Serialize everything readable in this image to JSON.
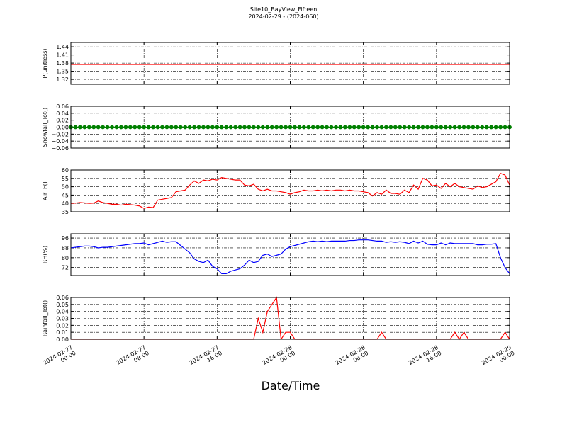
{
  "chart_data": {
    "type": "line",
    "title": [
      "Site10_BayView_Fifteen",
      "2024-02-29 - (2024-060)"
    ],
    "x_label": "Date/Time",
    "xlim": [
      "2024-02-27 00:00",
      "2024-02-29 00:00"
    ],
    "xticks": [
      {
        "value": "2024-02-27 00:00",
        "label": "2024-02-27\n00:00"
      },
      {
        "value": "2024-02-27 08:00",
        "label": "2024-02-27\n08:00"
      },
      {
        "value": "2024-02-27 16:00",
        "label": "2024-02-27\n16:00"
      },
      {
        "value": "2024-02-28 00:00",
        "label": "2024-02-28\n00:00"
      },
      {
        "value": "2024-02-28 08:00",
        "label": "2024-02-28\n08:00"
      },
      {
        "value": "2024-02-28 16:00",
        "label": "2024-02-28\n16:00"
      },
      {
        "value": "2024-02-29 00:00",
        "label": "2024-02-29\n00:00"
      }
    ],
    "grid": true,
    "x": [
      "2024-02-27 00:00",
      "2024-02-27 00:30",
      "2024-02-27 01:00",
      "2024-02-27 01:30",
      "2024-02-27 02:00",
      "2024-02-27 02:30",
      "2024-02-27 03:00",
      "2024-02-27 03:30",
      "2024-02-27 04:00",
      "2024-02-27 04:30",
      "2024-02-27 05:00",
      "2024-02-27 05:30",
      "2024-02-27 06:00",
      "2024-02-27 06:30",
      "2024-02-27 07:00",
      "2024-02-27 07:30",
      "2024-02-27 08:00",
      "2024-02-27 08:30",
      "2024-02-27 09:00",
      "2024-02-27 09:30",
      "2024-02-27 10:00",
      "2024-02-27 10:30",
      "2024-02-27 11:00",
      "2024-02-27 11:30",
      "2024-02-27 12:00",
      "2024-02-27 12:30",
      "2024-02-27 13:00",
      "2024-02-27 13:30",
      "2024-02-27 14:00",
      "2024-02-27 14:30",
      "2024-02-27 15:00",
      "2024-02-27 15:30",
      "2024-02-27 16:00",
      "2024-02-27 16:30",
      "2024-02-27 17:00",
      "2024-02-27 17:30",
      "2024-02-27 18:00",
      "2024-02-27 18:30",
      "2024-02-27 19:00",
      "2024-02-27 19:30",
      "2024-02-27 20:00",
      "2024-02-27 20:30",
      "2024-02-27 21:00",
      "2024-02-27 21:30",
      "2024-02-27 22:00",
      "2024-02-27 22:30",
      "2024-02-27 23:00",
      "2024-02-27 23:30",
      "2024-02-28 00:00",
      "2024-02-28 00:30",
      "2024-02-28 01:00",
      "2024-02-28 01:30",
      "2024-02-28 02:00",
      "2024-02-28 02:30",
      "2024-02-28 03:00",
      "2024-02-28 03:30",
      "2024-02-28 04:00",
      "2024-02-28 04:30",
      "2024-02-28 05:00",
      "2024-02-28 05:30",
      "2024-02-28 06:00",
      "2024-02-28 06:30",
      "2024-02-28 07:00",
      "2024-02-28 07:30",
      "2024-02-28 08:00",
      "2024-02-28 08:30",
      "2024-02-28 09:00",
      "2024-02-28 09:30",
      "2024-02-28 10:00",
      "2024-02-28 10:30",
      "2024-02-28 11:00",
      "2024-02-28 11:30",
      "2024-02-28 12:00",
      "2024-02-28 12:30",
      "2024-02-28 13:00",
      "2024-02-28 13:30",
      "2024-02-28 14:00",
      "2024-02-28 14:30",
      "2024-02-28 15:00",
      "2024-02-28 15:30",
      "2024-02-28 16:00",
      "2024-02-28 16:30",
      "2024-02-28 17:00",
      "2024-02-28 17:30",
      "2024-02-28 18:00",
      "2024-02-28 18:30",
      "2024-02-28 19:00",
      "2024-02-28 19:30",
      "2024-02-28 20:00",
      "2024-02-28 20:30",
      "2024-02-28 21:00",
      "2024-02-28 21:30",
      "2024-02-28 22:00",
      "2024-02-28 22:30",
      "2024-02-28 23:00",
      "2024-02-28 23:30",
      "2024-02-29 00:00"
    ],
    "panels": [
      {
        "y_label": "P(unitless)",
        "color": "#ff0000",
        "ylim": [
          1.302,
          1.456
        ],
        "yticks": [
          1.32,
          1.35,
          1.38,
          1.41,
          1.44
        ],
        "values": [
          1.375,
          1.375,
          1.375,
          1.375,
          1.375,
          1.375,
          1.375,
          1.375,
          1.375,
          1.375,
          1.375,
          1.375,
          1.375,
          1.375,
          1.375,
          1.375,
          1.375,
          1.375,
          1.375,
          1.375,
          1.375,
          1.375,
          1.375,
          1.375,
          1.375,
          1.375,
          1.375,
          1.375,
          1.375,
          1.375,
          1.375,
          1.375,
          1.375,
          1.375,
          1.375,
          1.375,
          1.375,
          1.375,
          1.375,
          1.375,
          1.375,
          1.375,
          1.375,
          1.375,
          1.375,
          1.375,
          1.375,
          1.375,
          1.375,
          1.375,
          1.375,
          1.375,
          1.375,
          1.375,
          1.375,
          1.375,
          1.375,
          1.375,
          1.375,
          1.375,
          1.375,
          1.375,
          1.375,
          1.375,
          1.375,
          1.375,
          1.375,
          1.375,
          1.375,
          1.375,
          1.375,
          1.375,
          1.375,
          1.375,
          1.375,
          1.375,
          1.375,
          1.375,
          1.375,
          1.375,
          1.375,
          1.375,
          1.375,
          1.375,
          1.375,
          1.375,
          1.375,
          1.375,
          1.375,
          1.375,
          1.375,
          1.375,
          1.375,
          1.375,
          1.375,
          1.375,
          1.375
        ]
      },
      {
        "y_label": "Snowfall_Tot()",
        "color": "#008000",
        "marker": "o",
        "ylim": [
          -0.06,
          0.06
        ],
        "yticks": [
          {
            "value": -0.06,
            "label": "−0.06"
          },
          {
            "value": -0.04,
            "label": "−0.04"
          },
          {
            "value": -0.02,
            "label": "−0.02"
          },
          {
            "value": 0,
            "label": "0.00"
          },
          0.02,
          0.04,
          0.06
        ],
        "values": [
          0,
          0,
          0,
          0,
          0,
          0,
          0,
          0,
          0,
          0,
          0,
          0,
          0,
          0,
          0,
          0,
          0,
          0,
          0,
          0,
          0,
          0,
          0,
          0,
          0,
          0,
          0,
          0,
          0,
          0,
          0,
          0,
          0,
          0,
          0,
          0,
          0,
          0,
          0,
          0,
          0,
          0,
          0,
          0,
          0,
          0,
          0,
          0,
          0,
          0,
          0,
          0,
          0,
          0,
          0,
          0,
          0,
          0,
          0,
          0,
          0,
          0,
          0,
          0,
          0,
          0,
          0,
          0,
          0,
          0,
          0,
          0,
          0,
          0,
          0,
          0,
          0,
          0,
          0,
          0,
          0,
          0,
          0,
          0,
          0,
          0,
          0,
          0,
          0,
          0,
          0,
          0,
          0,
          0,
          0,
          0,
          0
        ]
      },
      {
        "y_label": "AirTF()",
        "color": "#ff0000",
        "ylim": [
          35,
          60
        ],
        "yticks": [
          35,
          40,
          45,
          50,
          55,
          60
        ],
        "values": [
          40,
          40.2,
          40.5,
          40.3,
          40,
          40.2,
          41.5,
          40.5,
          40,
          39.5,
          39.5,
          39,
          39.5,
          39.3,
          39,
          38.5,
          37,
          37.8,
          37.5,
          42,
          42.5,
          43,
          43.5,
          47,
          47.5,
          48,
          51,
          53.5,
          52,
          54,
          53.5,
          54.5,
          54,
          55.5,
          55,
          54.5,
          54,
          54,
          51,
          50.5,
          51.5,
          48.5,
          47.5,
          48.5,
          47.5,
          47.5,
          47,
          46.5,
          45.5,
          46.5,
          47,
          48,
          47.5,
          47.5,
          48,
          47.5,
          48,
          47.5,
          48,
          48,
          47.5,
          48,
          47.5,
          47.5,
          47,
          46.5,
          44.5,
          46.5,
          45.5,
          48,
          46,
          46,
          45.5,
          48,
          46.5,
          51,
          48.5,
          55,
          54,
          50.5,
          51,
          49,
          52,
          50,
          52,
          50,
          49.5,
          49,
          48.5,
          50.5,
          49.5,
          50,
          51.5,
          53,
          58,
          57,
          51
        ]
      },
      {
        "y_label": "RH(%)",
        "color": "#0000ff",
        "ylim": [
          65.5,
          99.5
        ],
        "yticks": [
          72,
          80,
          88,
          96
        ],
        "values": [
          88,
          88.5,
          89,
          89.5,
          89.5,
          89,
          88,
          88.5,
          88.5,
          89,
          89.5,
          90,
          90.5,
          91,
          91.5,
          91.5,
          92,
          90.5,
          91.5,
          92.5,
          93.5,
          92.5,
          93,
          93,
          90,
          87,
          84,
          79,
          77,
          76,
          78,
          73,
          71,
          67,
          67,
          69,
          70,
          71,
          74,
          78,
          76,
          77,
          82,
          83,
          81,
          82,
          83,
          87,
          89,
          90,
          91,
          92,
          93,
          93.5,
          93,
          93.5,
          93,
          93.5,
          93.5,
          93.5,
          93.5,
          94,
          94,
          94.5,
          94.5,
          94.5,
          94,
          93.5,
          93.5,
          92.5,
          93,
          92.5,
          93,
          92.5,
          91.5,
          93.5,
          92,
          93.5,
          91,
          90.5,
          90.5,
          92,
          90.5,
          92,
          91.5,
          91.5,
          91.5,
          91.5,
          91.5,
          90.5,
          90.5,
          91,
          91,
          91.5,
          80,
          72,
          67
        ]
      },
      {
        "y_label": "Rainfall_Tot()",
        "color": "#ff0000",
        "ylim": [
          0,
          0.06
        ],
        "yticks": [
          {
            "value": 0,
            "label": "0.00"
          },
          0.01,
          0.02,
          0.03,
          0.04,
          0.05,
          0.06
        ],
        "values": [
          0,
          0,
          0,
          0,
          0,
          0,
          0,
          0,
          0,
          0,
          0,
          0,
          0,
          0,
          0,
          0,
          0,
          0,
          0,
          0,
          0,
          0,
          0,
          0,
          0,
          0,
          0,
          0,
          0,
          0,
          0,
          0,
          0,
          0,
          0,
          0,
          0,
          0,
          0,
          0,
          0,
          0.03,
          0.01,
          0.04,
          0.05,
          0.06,
          0,
          0.01,
          0.01,
          0,
          0,
          0,
          0,
          0,
          0,
          0,
          0,
          0,
          0,
          0,
          0,
          0,
          0,
          0,
          0,
          0,
          0,
          0,
          0.01,
          0,
          0,
          0,
          0,
          0,
          0,
          0,
          0,
          0,
          0,
          0,
          0,
          0,
          0,
          0,
          0.01,
          0,
          0.01,
          0,
          0,
          0,
          0,
          0,
          0,
          0,
          0,
          0.01,
          0
        ]
      }
    ]
  }
}
